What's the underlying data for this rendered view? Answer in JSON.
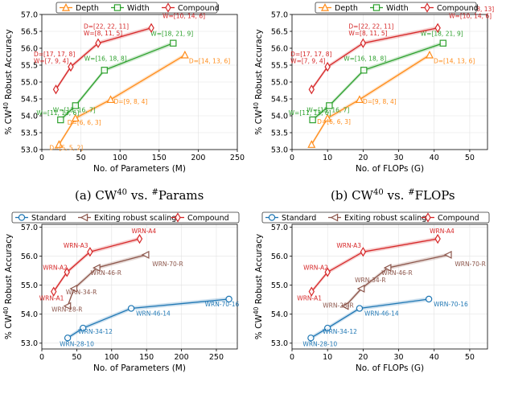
{
  "captions": [
    {
      "label": "(a)",
      "metric": "CW",
      "sup": "40",
      "vs": "vs.",
      "hash": "#",
      "what": "Params"
    },
    {
      "label": "(b)",
      "metric": "CW",
      "sup": "40",
      "vs": "vs.",
      "hash": "#",
      "what": "FLOPs"
    }
  ],
  "colors": {
    "depth": "#ff8c1a",
    "width": "#2ca02c",
    "compound": "#d62728",
    "standard": "#1f77b4",
    "exiting": "#8c564b"
  },
  "chart_data": [
    {
      "type": "line",
      "panel": "top-left",
      "xlabel": "No. of Parameters (M)",
      "ylabel_prefix": "% CW",
      "ylabel_sup": "40",
      "ylabel_suffix": " Robust Accuracy",
      "xlim": [
        0,
        250
      ],
      "ylim": [
        53.0,
        57.0
      ],
      "xticks": [
        0,
        50,
        100,
        150,
        200,
        250
      ],
      "yticks": [
        53.0,
        53.5,
        54.0,
        54.5,
        55.0,
        55.5,
        56.0,
        56.5,
        57.0
      ],
      "grid": true,
      "legend": "top",
      "series": [
        {
          "name": "Depth",
          "marker": "triangle",
          "x": [
            22,
            43,
            88,
            183
          ],
          "y": [
            53.15,
            53.93,
            54.48,
            55.8
          ],
          "labels": [
            "D=[5, 5, 2]",
            "D=[6, 6, 3]",
            "D=[9, 8, 4]",
            "D=[14, 13, 6]"
          ]
        },
        {
          "name": "Width",
          "marker": "square",
          "x": [
            24,
            43,
            80,
            168
          ],
          "y": [
            53.88,
            54.3,
            55.35,
            56.15
          ],
          "labels": [
            "W=[11, 13, 6]",
            "W=[13, 16, 7]",
            "W=[16, 18, 8]",
            "W=[18, 21, 9]"
          ]
        },
        {
          "name": "Compound",
          "marker": "diamond",
          "x": [
            18,
            37,
            72,
            140
          ],
          "y": [
            54.78,
            55.45,
            56.15,
            56.6
          ],
          "labels": [
            "",
            "D=[17, 17, 8]\nW=[7, 9, 4]",
            "D=[22, 22, 11]\nW=[8, 11, 5]",
            "D=[27, 28, 13]\nW=[10, 14, 6]"
          ]
        }
      ]
    },
    {
      "type": "line",
      "panel": "top-right",
      "xlabel": "No. of FLOPs (G)",
      "ylabel_prefix": "% CW",
      "ylabel_sup": "40",
      "ylabel_suffix": " Robust Accuracy",
      "xlim": [
        0,
        55
      ],
      "ylim": [
        53.0,
        57.0
      ],
      "xticks": [
        0,
        10,
        20,
        30,
        40,
        50
      ],
      "yticks": [
        53.0,
        53.5,
        54.0,
        54.5,
        55.0,
        55.5,
        56.0,
        56.5,
        57.0
      ],
      "grid": true,
      "legend": "top",
      "series": [
        {
          "name": "Depth",
          "marker": "triangle",
          "x": [
            5.5,
            10,
            19,
            38.7
          ],
          "y": [
            53.15,
            53.93,
            54.48,
            55.8
          ],
          "labels": [
            "",
            "D=[6, 6, 3]",
            "D=[9, 8, 4]",
            "D=[14, 13, 6]"
          ]
        },
        {
          "name": "Width",
          "marker": "square",
          "x": [
            5.8,
            10.5,
            20.2,
            42.5
          ],
          "y": [
            53.88,
            54.3,
            55.35,
            56.15
          ],
          "labels": [
            "W=[11, 13, 6]",
            "W=[13, 16, 7]",
            "W=[16, 18, 8]",
            "W=[18, 21, 9]"
          ]
        },
        {
          "name": "Compound",
          "marker": "diamond",
          "x": [
            5.5,
            10,
            20,
            41
          ],
          "y": [
            54.78,
            55.45,
            56.15,
            56.6
          ],
          "labels": [
            "",
            "D=[17, 17, 8]\nW=[7, 9, 4]",
            "D=[22, 22, 11]\nW=[8, 11, 5]",
            "D=[27, 28, 13]\nW=[10, 14, 6]"
          ]
        }
      ]
    },
    {
      "type": "line",
      "panel": "bottom-left",
      "xlabel": "No. of Parameters (M)",
      "ylabel_prefix": "% CW",
      "ylabel_sup": "40",
      "ylabel_suffix": " Robust Accuracy",
      "xlim": [
        0,
        280
      ],
      "ylim": [
        52.8,
        57.1
      ],
      "xticks": [
        0,
        50,
        100,
        150,
        200,
        250
      ],
      "yticks": [
        53.0,
        54.0,
        55.0,
        56.0,
        57.0
      ],
      "grid": true,
      "legend": "top",
      "series": [
        {
          "name": "Standard",
          "marker": "circle",
          "x": [
            37,
            59,
            128,
            268
          ],
          "y": [
            53.18,
            53.52,
            54.2,
            54.52
          ],
          "labels": [
            "WRN-28-10",
            "WRN-34-12",
            "WRN-46-14",
            "WRN-70-16"
          ]
        },
        {
          "name": "Exiting robust scaling",
          "marker": "triangle-left",
          "x": [
            37,
            46,
            79,
            149
          ],
          "y": [
            54.28,
            54.88,
            55.6,
            56.05
          ],
          "labels": [
            "WRN-28-R",
            "WRN-34-R",
            "WRN-46-R",
            "WRN-70-R"
          ]
        },
        {
          "name": "Compound",
          "marker": "diamond",
          "x": [
            17,
            36,
            69,
            140
          ],
          "y": [
            54.78,
            55.45,
            56.15,
            56.6
          ],
          "labels": [
            "WRN-A1",
            "WRN-A2",
            "WRN-A3",
            "WRN-A4"
          ]
        }
      ]
    },
    {
      "type": "line",
      "panel": "bottom-right",
      "xlabel": "No. of FLOPs (G)",
      "ylabel_prefix": "% CW",
      "ylabel_sup": "40",
      "ylabel_suffix": " Robust Accuracy",
      "xlim": [
        0,
        55
      ],
      "ylim": [
        52.8,
        57.1
      ],
      "xticks": [
        0,
        10,
        20,
        30,
        40,
        50
      ],
      "yticks": [
        53.0,
        54.0,
        55.0,
        56.0,
        57.0
      ],
      "grid": true,
      "legend": "top",
      "series": [
        {
          "name": "Standard",
          "marker": "circle",
          "x": [
            5.3,
            10,
            19,
            38.5
          ],
          "y": [
            53.18,
            53.52,
            54.2,
            54.52
          ],
          "labels": [
            "WRN-28-10",
            "WRN-34-12",
            "WRN-46-14",
            "WRN-70-16"
          ]
        },
        {
          "name": "Exiting robust scaling",
          "marker": "triangle-left",
          "x": [
            15,
            19.5,
            27,
            44
          ],
          "y": [
            54.28,
            54.88,
            55.6,
            56.05
          ],
          "labels": [
            "WRN-28-R",
            "WRN-34-R",
            "WRN-46-R",
            "WRN-70-R"
          ]
        },
        {
          "name": "Compound",
          "marker": "diamond",
          "x": [
            5.5,
            10,
            20,
            41
          ],
          "y": [
            54.78,
            55.45,
            56.15,
            56.6
          ],
          "labels": [
            "WRN-A1",
            "WRN-A2",
            "WRN-A3",
            "WRN-A4"
          ]
        }
      ]
    }
  ]
}
